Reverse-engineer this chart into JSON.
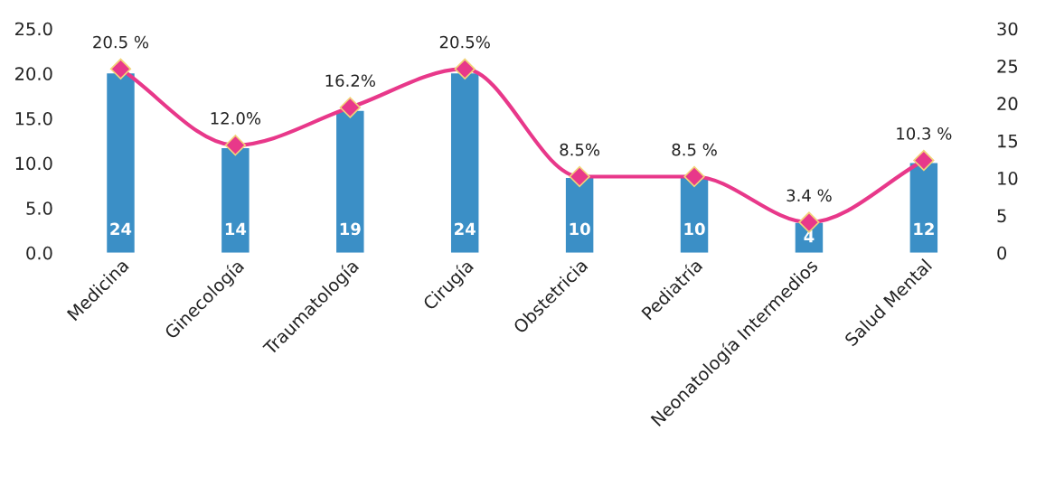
{
  "chart_data": {
    "type": "bar",
    "categories": [
      "Medicina",
      "Ginecología",
      "Traumatología",
      "Cirugía",
      "Obstetricia",
      "Pediatría",
      "Neonatología Intermedios",
      "Salud Mental"
    ],
    "series": [
      {
        "axis": "y2",
        "color": "#3b8fc6",
        "values": [
          24,
          14,
          19,
          24,
          10,
          10,
          4,
          12
        ],
        "value_labels": [
          "24",
          "14",
          "19",
          "24",
          "10",
          "10",
          "4",
          "12"
        ]
      },
      {
        "type": "line",
        "axis": "y",
        "color": "#e8388a",
        "values": [
          20.5,
          12.0,
          16.2,
          20.5,
          8.5,
          8.5,
          3.4,
          10.3
        ],
        "value_labels": [
          "20.5 %",
          "12.0%",
          "16.2%",
          "20.5%",
          "8.5%",
          "8.5 %",
          "3.4 %",
          "10.3 %"
        ]
      }
    ],
    "marker": "diamond",
    "line_style": "solid",
    "ylim": [
      0,
      25
    ],
    "yticks": [
      {
        "value": 0,
        "label": "0.0"
      },
      {
        "value": 5,
        "label": "5.0"
      },
      {
        "value": 10,
        "label": "10.0"
      },
      {
        "value": 15,
        "label": "15.0"
      },
      {
        "value": 20,
        "label": "20.0"
      },
      {
        "value": 25,
        "label": "25.0"
      }
    ],
    "y2lim": [
      0,
      30
    ],
    "y2ticks": [
      0,
      5,
      10,
      15,
      20,
      25,
      30
    ]
  }
}
